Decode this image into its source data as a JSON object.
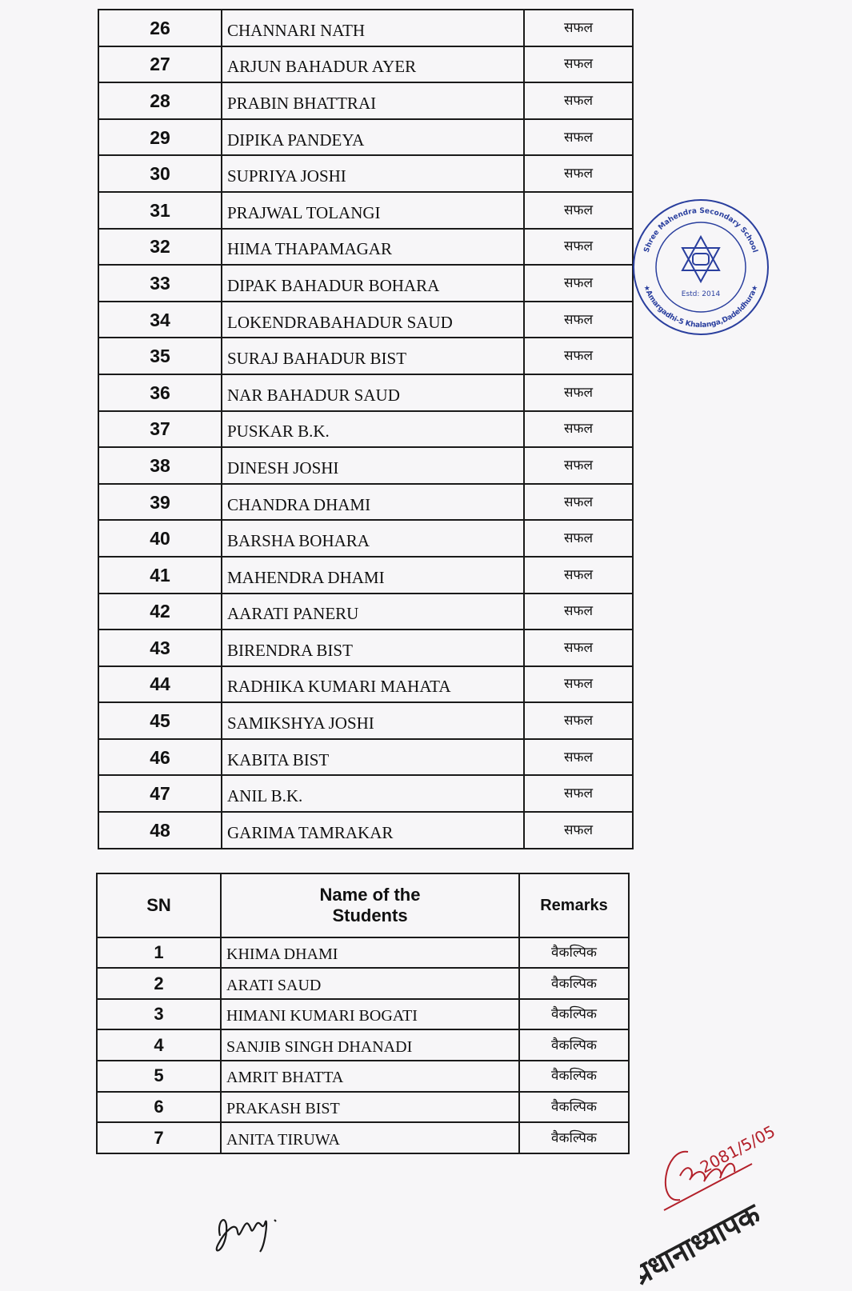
{
  "main_table": {
    "rows": [
      {
        "sn": "26",
        "name": "CHANNARI NATH",
        "remarks": "सफल"
      },
      {
        "sn": "27",
        "name": "ARJUN BAHADUR AYER",
        "remarks": "सफल"
      },
      {
        "sn": "28",
        "name": "PRABIN BHATTRAI",
        "remarks": "सफल"
      },
      {
        "sn": "29",
        "name": "DIPIKA PANDEYA",
        "remarks": "सफल"
      },
      {
        "sn": "30",
        "name": "SUPRIYA JOSHI",
        "remarks": "सफल"
      },
      {
        "sn": "31",
        "name": "PRAJWAL TOLANGI",
        "remarks": "सफल"
      },
      {
        "sn": "32",
        "name": "HIMA THAPAMAGAR",
        "remarks": "सफल"
      },
      {
        "sn": "33",
        "name": "DIPAK BAHADUR BOHARA",
        "remarks": "सफल"
      },
      {
        "sn": "34",
        "name": "LOKENDRABAHADUR SAUD",
        "remarks": "सफल"
      },
      {
        "sn": "35",
        "name": "SURAJ BAHADUR BIST",
        "remarks": "सफल"
      },
      {
        "sn": "36",
        "name": "NAR BAHADUR SAUD",
        "remarks": "सफल"
      },
      {
        "sn": "37",
        "name": "PUSKAR B.K.",
        "remarks": "सफल"
      },
      {
        "sn": "38",
        "name": "DINESH JOSHI",
        "remarks": "सफल"
      },
      {
        "sn": "39",
        "name": "CHANDRA DHAMI",
        "remarks": "सफल"
      },
      {
        "sn": "40",
        "name": "BARSHA BOHARA",
        "remarks": "सफल"
      },
      {
        "sn": "41",
        "name": "MAHENDRA DHAMI",
        "remarks": "सफल"
      },
      {
        "sn": "42",
        "name": "AARATI PANERU",
        "remarks": "सफल"
      },
      {
        "sn": "43",
        "name": "BIRENDRA BIST",
        "remarks": "सफल"
      },
      {
        "sn": "44",
        "name": "RADHIKA KUMARI MAHATA",
        "remarks": "सफल"
      },
      {
        "sn": "45",
        "name": "SAMIKSHYA JOSHI",
        "remarks": "सफल"
      },
      {
        "sn": "46",
        "name": "KABITA BIST",
        "remarks": "सफल"
      },
      {
        "sn": "47",
        "name": "ANIL B.K.",
        "remarks": "सफल"
      },
      {
        "sn": "48",
        "name": "GARIMA TAMRAKAR",
        "remarks": "सफल"
      }
    ]
  },
  "alternate_table": {
    "headers": {
      "sn": "SN",
      "name": "Name of the Students",
      "remarks": "Remarks"
    },
    "rows": [
      {
        "sn": "1",
        "name": "KHIMA DHAMI",
        "remarks": "वैकल्पिक"
      },
      {
        "sn": "2",
        "name": "ARATI SAUD",
        "remarks": "वैकल्पिक"
      },
      {
        "sn": "3",
        "name": "HIMANI KUMARI BOGATI",
        "remarks": "वैकल्पिक"
      },
      {
        "sn": "4",
        "name": "SANJIB SINGH DHANADI",
        "remarks": "वैकल्पिक"
      },
      {
        "sn": "5",
        "name": "AMRIT BHATTA",
        "remarks": "वैकल्पिक"
      },
      {
        "sn": "6",
        "name": "PRAKASH BIST",
        "remarks": "वैकल्पिक"
      },
      {
        "sn": "7",
        "name": "ANITA TIRUWA",
        "remarks": "वैकल्पिक"
      }
    ]
  },
  "stamp": {
    "top_text": "Shree Mahendra Secondary School",
    "bottom_text": "★Amargadhi-5 Khalanga,Dadeldhura★",
    "estd": "Estd: 2014",
    "color": "#2a3f9e"
  },
  "signature_right": {
    "date": "2081/5/05",
    "title": "प्रधानाध्यापक",
    "ink_color": "#b3202a"
  }
}
